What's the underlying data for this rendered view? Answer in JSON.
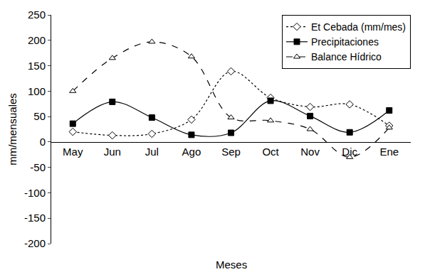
{
  "chart_data": {
    "type": "line",
    "x_label": "Meses",
    "y_label": "mm/mensuales",
    "categories": [
      "May",
      "Jun",
      "Jul",
      "Ago",
      "Sep",
      "Oct",
      "Nov",
      "Dic",
      "Ene"
    ],
    "series": [
      {
        "name": "Et Cebada (mm/mes)",
        "color": "#000000",
        "marker": "diamond-open",
        "line_style": "dot",
        "values": [
          20,
          13,
          16,
          44,
          139,
          87,
          69,
          74,
          32
        ]
      },
      {
        "name": "Precipitaciones",
        "color": "#000000",
        "marker": "square",
        "line_style": "solid",
        "values": [
          36,
          79,
          48,
          14,
          18,
          81,
          51,
          19,
          62
        ]
      },
      {
        "name": "Balance Hídrico",
        "color": "#000000",
        "marker": "triangle-up-open",
        "line_style": "dash",
        "values": [
          100,
          165,
          197,
          168,
          48,
          42,
          25,
          -30,
          28
        ]
      }
    ],
    "ylim": [
      -200,
      250
    ],
    "yticks": [
      -200,
      -150,
      -100,
      -50,
      0,
      50,
      100,
      150,
      200,
      250
    ],
    "grid": false,
    "legend": "upper right"
  }
}
